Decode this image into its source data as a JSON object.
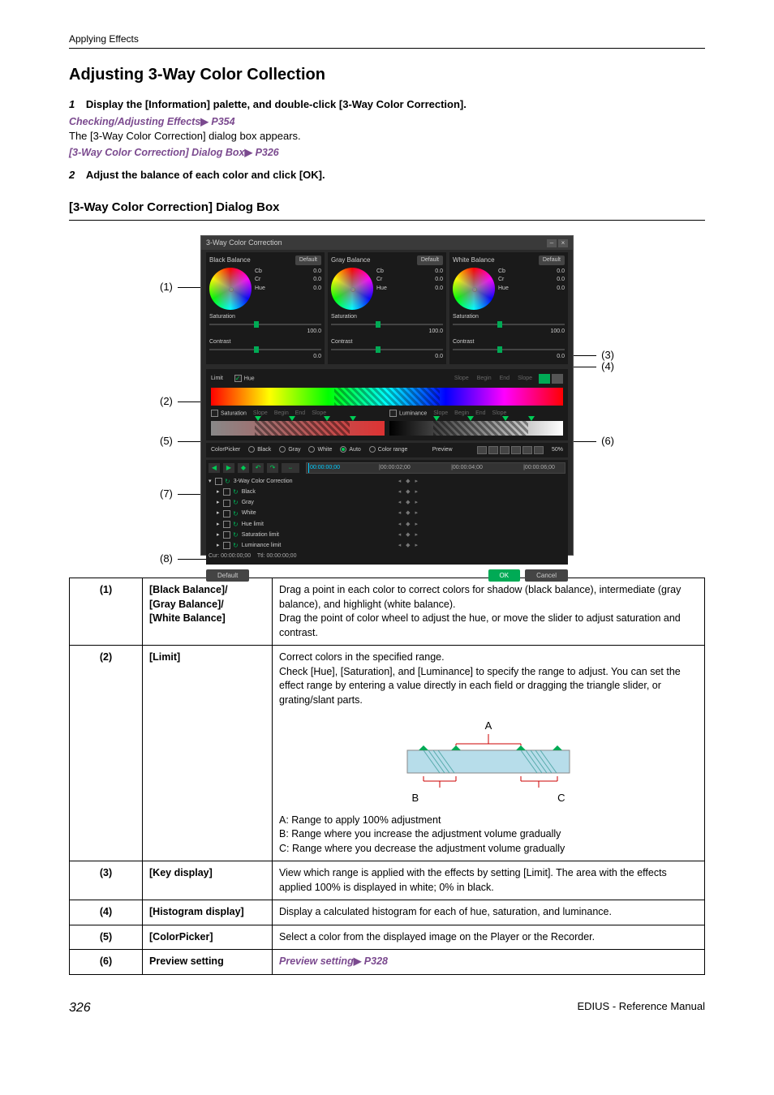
{
  "header": {
    "breadcrumb": "Applying Effects"
  },
  "section": {
    "title": "Adjusting 3-Way Color Collection"
  },
  "steps": {
    "s1_num": "1",
    "s1_text": "Display the [Information] palette, and double-click [3-Way Color Correction].",
    "ref1": "Checking/Adjusting Effects",
    "ref1_page": "P354",
    "after1": "The [3-Way Color Correction] dialog box appears.",
    "ref2": "[3-Way Color Correction] Dialog Box",
    "ref2_page": "P326",
    "s2_num": "2",
    "s2_text": "Adjust the balance of each color and click [OK]."
  },
  "subsection": {
    "title": "[3-Way Color Correction] Dialog Box"
  },
  "dialog": {
    "title": "3-Way Color Correction",
    "panels": {
      "black": {
        "title": "Black Balance",
        "default": "Default",
        "cb": "Cb",
        "cr": "Cr",
        "hue": "Hue",
        "cb_v": "0.0",
        "cr_v": "0.0",
        "hue_v": "0.0",
        "sat_label": "Saturation",
        "sat_v": "100.0",
        "con_label": "Contrast",
        "con_v": "0.0"
      },
      "gray": {
        "title": "Gray Balance",
        "default": "Default",
        "cb": "Cb",
        "cr": "Cr",
        "hue": "Hue",
        "cb_v": "0.0",
        "cr_v": "0.0",
        "hue_v": "0.0",
        "sat_label": "Saturation",
        "sat_v": "100.0",
        "con_label": "Contrast",
        "con_v": "0.0"
      },
      "white": {
        "title": "White Balance",
        "default": "Default",
        "cb": "Cb",
        "cr": "Cr",
        "hue": "Hue",
        "cb_v": "0.0",
        "cr_v": "0.0",
        "hue_v": "0.0",
        "sat_label": "Saturation",
        "sat_v": "100.0",
        "con_label": "Contrast",
        "con_v": "0.0"
      }
    },
    "limit": {
      "title": "Limit",
      "hue_label": "Hue",
      "slope1": "Slope",
      "begin": "Begin",
      "end": "End",
      "slope2": "Slope",
      "sat_label": "Saturation",
      "lum_label": "Luminance"
    },
    "picker": {
      "title": "ColorPicker",
      "black": "Black",
      "gray": "Gray",
      "white": "White",
      "auto": "Auto",
      "range": "Color range",
      "preview": "Preview",
      "pct": "50%"
    },
    "timeline": {
      "tc0": "00:00:00;00",
      "tc1": "|00:00:02;00",
      "tc2": "|00:00:04;00",
      "tc3": "|00:00:06;00",
      "root": "3-Way Color Correction",
      "items": [
        "Black",
        "Gray",
        "White",
        "Hue limit",
        "Saturation limit",
        "Luminance limit"
      ],
      "cur": "Cur: 00:00:00;00",
      "ttl": "Ttl: 00:00:00;00"
    },
    "footer": {
      "default": "Default",
      "ok": "OK",
      "cancel": "Cancel"
    }
  },
  "callouts": {
    "c1": "(1)",
    "c2": "(2)",
    "c3": "(3)",
    "c4": "(4)",
    "c5": "(5)",
    "c6": "(6)",
    "c7": "(7)",
    "c8": "(8)"
  },
  "table": {
    "r1": {
      "n": "(1)",
      "label": "[Black Balance]/\n[Gray Balance]/\n[White Balance]",
      "desc": "Drag a point in each color to correct colors for shadow (black balance), intermediate (gray balance), and highlight (white balance).\nDrag the point of color wheel to adjust the hue, or move the slider to adjust saturation and contrast."
    },
    "r2": {
      "n": "(2)",
      "label": "[Limit]",
      "desc_top": "Correct colors in the specified range.\nCheck [Hue], [Saturation], and [Luminance] to specify the range to adjust. You can set the effect range by entering a value directly in each field or dragging the triangle slider, or grating/slant parts.",
      "diag_A": "A",
      "diag_B": "B",
      "diag_C": "C",
      "desc_a": "A: Range to apply 100% adjustment",
      "desc_b": "B: Range where you increase the adjustment volume gradually",
      "desc_c": "C: Range where you decrease the adjustment volume gradually"
    },
    "r3": {
      "n": "(3)",
      "label": "[Key display]",
      "desc": "View which range is applied with the effects by setting [Limit]. The area with the effects applied 100% is displayed in white; 0% in black."
    },
    "r4": {
      "n": "(4)",
      "label": "[Histogram display]",
      "desc": "Display a calculated histogram for each of hue, saturation, and luminance."
    },
    "r5": {
      "n": "(5)",
      "label": "[ColorPicker]",
      "desc": "Select a color from the displayed image on the Player or the Recorder."
    },
    "r6": {
      "n": "(6)",
      "label": "Preview setting",
      "desc": "Preview setting",
      "desc_page": "P328"
    }
  },
  "footer": {
    "page": "326",
    "doc": "EDIUS - Reference Manual"
  }
}
